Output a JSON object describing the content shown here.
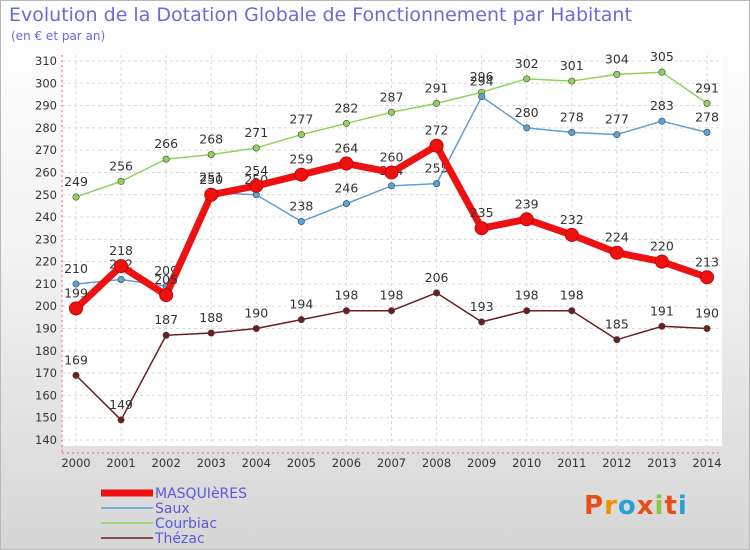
{
  "title": "Evolution de la Dotation Globale de Fonctionnement par Habitant",
  "subtitle": "(en € et par an)",
  "logo": {
    "text": "Proxiti",
    "colors": [
      "#e84e1b",
      "#f39200",
      "#2a9fd6",
      "#e84e1b",
      "#8cc63f",
      "#e84e1b",
      "#2a9fd6"
    ]
  },
  "chart_data": {
    "type": "line",
    "x": [
      2000,
      2001,
      2002,
      2003,
      2004,
      2005,
      2006,
      2007,
      2008,
      2009,
      2010,
      2011,
      2012,
      2013,
      2014
    ],
    "ylim": [
      140,
      310
    ],
    "yticks": [
      140,
      150,
      160,
      170,
      180,
      190,
      200,
      210,
      220,
      230,
      240,
      250,
      260,
      270,
      280,
      290,
      300,
      310
    ],
    "grid": true,
    "legend_position": "bottom-left",
    "series": [
      {
        "name": "Courbiac",
        "color": "#8fd45a",
        "values": [
          249,
          256,
          266,
          268,
          271,
          277,
          282,
          287,
          291,
          296,
          302,
          301,
          304,
          305,
          291
        ]
      },
      {
        "name": "Saux",
        "color": "#5ea0d8",
        "values": [
          210,
          212,
          209,
          251,
          250,
          238,
          246,
          254,
          255,
          294,
          280,
          278,
          277,
          283,
          278
        ]
      },
      {
        "name": "Thézac",
        "color": "#6b1f1f",
        "values": [
          169,
          149,
          187,
          188,
          190,
          194,
          198,
          198,
          206,
          193,
          198,
          198,
          185,
          191,
          190
        ]
      },
      {
        "name": "MASQUIèRES",
        "color": "#ee1111",
        "values": [
          199,
          218,
          205,
          250,
          254,
          259,
          264,
          260,
          272,
          235,
          239,
          232,
          224,
          220,
          213
        ]
      }
    ],
    "legend": [
      {
        "name": "MASQUIèRES",
        "color": "#ee1111"
      },
      {
        "name": "Saux",
        "color": "#5ea0d8"
      },
      {
        "name": "Courbiac",
        "color": "#8fd45a"
      },
      {
        "name": "Thézac",
        "color": "#6b1f1f"
      }
    ]
  }
}
